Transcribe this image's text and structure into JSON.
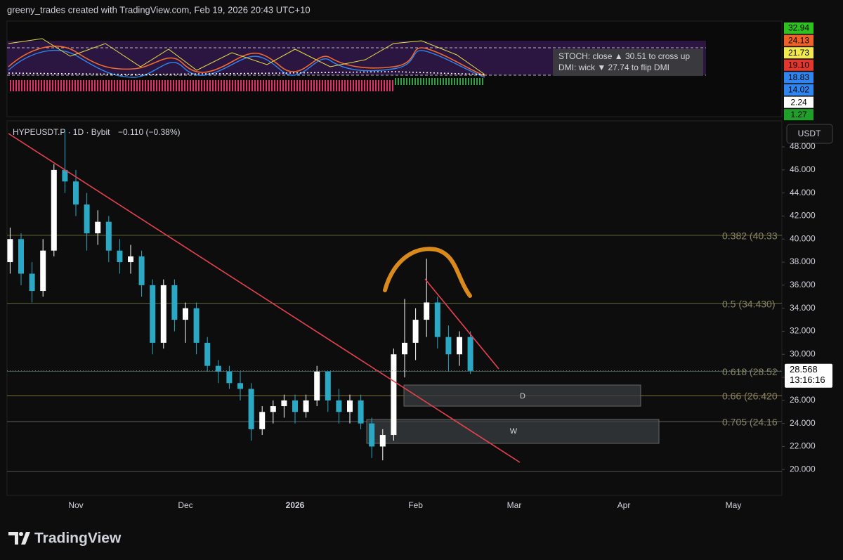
{
  "header": "greeny_trades created with TradingView.com, Feb 19, 2026 20:43 UTC+10",
  "indicator": {
    "tooltip": [
      "STOCH: close ▲ 30.51 to cross up",
      "DMI: wick ▼ 27.74 to flip DMI"
    ],
    "badges": [
      {
        "text": "32.94",
        "bg": "#2ec21f",
        "fg": "#000000"
      },
      {
        "text": "24.13",
        "bg": "#f0612a",
        "fg": "#000000"
      },
      {
        "text": "21.73",
        "bg": "#f2e94e",
        "fg": "#000000"
      },
      {
        "text": "19.10",
        "bg": "#e3362d",
        "fg": "#000000"
      },
      {
        "text": "18.83",
        "bg": "#2f86f0",
        "fg": "#000000"
      },
      {
        "text": "14.02",
        "bg": "#2f86f0",
        "fg": "#000000"
      },
      {
        "text": "2.24",
        "bg": "#ffffff",
        "fg": "#000000"
      },
      {
        "text": "1.27",
        "bg": "#1f9e2a",
        "fg": "#000000"
      }
    ]
  },
  "chart_data": {
    "type": "candlestick",
    "symbol": "HYPEUSDT.P · 1D · Bybit",
    "change": "−0.110 (−0.38%)",
    "currency": "USDT",
    "up_color": "#ffffff",
    "down_color": "#2aa8c4",
    "categories": [
      null,
      null,
      null,
      null,
      null,
      null,
      "Nov",
      null,
      null,
      null,
      null,
      null,
      null,
      null,
      null,
      null,
      "Dec",
      null,
      null,
      null,
      null,
      null,
      null,
      null,
      null,
      null,
      "2026",
      null,
      null,
      null,
      null,
      null,
      null,
      null,
      null,
      null,
      null,
      "Feb",
      null,
      null,
      null,
      null,
      null,
      null,
      null,
      null,
      "Mar",
      null,
      null,
      null,
      null,
      null,
      null,
      null,
      null,
      null,
      "Apr",
      null,
      null,
      null,
      null,
      null,
      null,
      null,
      null,
      null,
      "May",
      null,
      null,
      null,
      null
    ],
    "open": [
      38,
      40,
      37,
      35.5,
      39,
      46,
      45,
      43,
      40.5,
      41.5,
      39,
      38,
      38.5,
      36,
      31,
      36,
      33,
      34,
      31,
      29,
      28.5,
      27.5,
      27,
      23.5,
      25,
      25.5,
      26,
      25,
      26,
      28.5,
      26,
      25,
      26,
      24,
      22,
      23,
      30,
      31,
      33,
      34.5,
      31.5,
      30,
      31.5,
      null,
      null,
      null,
      null,
      null,
      null,
      null,
      null,
      null,
      null,
      null,
      null,
      null,
      null,
      null,
      null,
      null,
      null,
      null,
      null,
      null,
      null,
      null,
      null,
      null,
      null,
      null,
      null
    ],
    "high": [
      41,
      40.5,
      38,
      40,
      46.5,
      49.5,
      46,
      44,
      42.5,
      42,
      40,
      39.5,
      39,
      36.5,
      36.5,
      36.5,
      34.5,
      34.5,
      31.5,
      29.5,
      29,
      28.5,
      27.5,
      25.5,
      26,
      26.5,
      26.5,
      26.5,
      29,
      28.5,
      27,
      26.5,
      26.5,
      24.5,
      23.5,
      30.5,
      34.8,
      34,
      38.3,
      35,
      32.5,
      32,
      32,
      null,
      null,
      null,
      null,
      null,
      null,
      null,
      null,
      null,
      null,
      null,
      null,
      null,
      null,
      null,
      null,
      null,
      null,
      null,
      null,
      null,
      null,
      null,
      null,
      null,
      null,
      null,
      null
    ],
    "low": [
      37,
      36,
      34.5,
      35,
      38.5,
      44,
      42,
      39,
      39.5,
      38,
      37,
      37,
      35,
      30,
      30.5,
      32,
      31,
      30,
      28.5,
      27.5,
      27,
      26,
      22.5,
      23,
      24,
      24.5,
      24,
      24.5,
      25.5,
      25,
      24,
      24,
      23.5,
      21,
      20.8,
      22.5,
      28,
      29.5,
      31.5,
      30.5,
      28.5,
      29,
      28.3,
      null,
      null,
      null,
      null,
      null,
      null,
      null,
      null,
      null,
      null,
      null,
      null,
      null,
      null,
      null,
      null,
      null,
      null,
      null,
      null,
      null,
      null,
      null,
      null,
      null,
      null,
      null,
      null
    ],
    "close": [
      40,
      37,
      35.5,
      39,
      46,
      45,
      43,
      40.5,
      41.5,
      39,
      38,
      38.5,
      36,
      31,
      36,
      33,
      34,
      31,
      29,
      28.5,
      27.5,
      27,
      23.5,
      25,
      25.5,
      26,
      25,
      26,
      28.5,
      26,
      25,
      26,
      24,
      22,
      23,
      30,
      31,
      33,
      34.5,
      31.5,
      30,
      31.5,
      28.568,
      null,
      null,
      null,
      null,
      null,
      null,
      null,
      null,
      null,
      null,
      null,
      null,
      null,
      null,
      null,
      null,
      null,
      null,
      null,
      null,
      null,
      null,
      null,
      null,
      null,
      null,
      null,
      null
    ],
    "ylim": [
      17.76,
      50.26
    ],
    "yticks": [
      {
        "value": 20,
        "label": "20.000"
      },
      {
        "value": 22,
        "label": "22.000"
      },
      {
        "value": 24,
        "label": "24.000"
      },
      {
        "value": 26,
        "label": "26.000"
      },
      {
        "value": 28,
        "label": "28.000"
      },
      {
        "value": 30,
        "label": "30.000"
      },
      {
        "value": 32,
        "label": "32.000"
      },
      {
        "value": 34,
        "label": "34.000"
      },
      {
        "value": 36,
        "label": "36.000"
      },
      {
        "value": 38,
        "label": "38.000"
      },
      {
        "value": 40,
        "label": "40.000"
      },
      {
        "value": 42,
        "label": "42.000"
      },
      {
        "value": 44,
        "label": "44.000"
      },
      {
        "value": 46,
        "label": "46.000"
      },
      {
        "value": 48,
        "label": "48.000"
      }
    ],
    "last_price": 28.568,
    "countdown": "13:16:16",
    "fib_levels": [
      {
        "label": "0.382 (40.33",
        "value": 40.33,
        "color": "#6b6a3c"
      },
      {
        "label": "0.5 (34.430)",
        "value": 34.43,
        "color": "#5f6b3a"
      },
      {
        "label": "0.618 (28.52",
        "value": 28.52,
        "color": "#3d5a55"
      },
      {
        "label": "0.66 (26.420",
        "value": 26.42,
        "color": "#7a6a36"
      },
      {
        "label": "0.705 (24.16",
        "value": 24.16,
        "color": "#5a5f66"
      }
    ],
    "zones": [
      {
        "label": "D"
      },
      {
        "label": "W"
      }
    ]
  },
  "footer": {
    "logo": "TradingView"
  }
}
